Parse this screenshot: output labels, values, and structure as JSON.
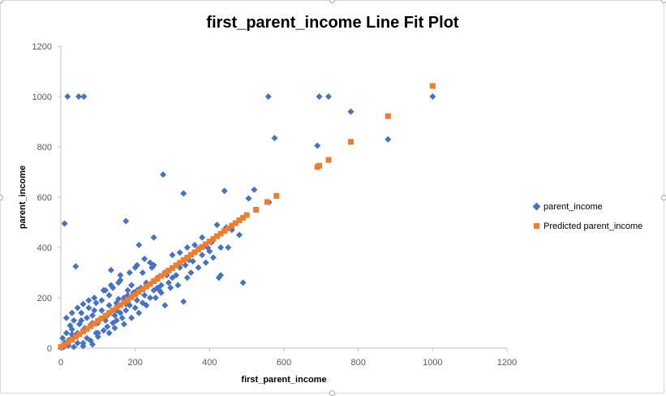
{
  "chart_data": {
    "type": "scatter",
    "title": "first_parent_income Line Fit  Plot",
    "xlabel": "first_parent_income",
    "ylabel": "parent_income",
    "xlim": [
      0,
      1200
    ],
    "ylim": [
      0,
      1200
    ],
    "x_ticks": [
      "0",
      "200",
      "400",
      "600",
      "800",
      "1000",
      "1200"
    ],
    "y_ticks": [
      "0",
      "200",
      "400",
      "600",
      "800",
      "1000",
      "1200"
    ],
    "grid": false,
    "legend_position": "right",
    "series": [
      {
        "name": "parent_income",
        "color": "#4472c4",
        "marker": "diamond",
        "points": [
          [
            18,
            1000
          ],
          [
            48,
            1000
          ],
          [
            62,
            1000
          ],
          [
            558,
            1000
          ],
          [
            695,
            1000
          ],
          [
            720,
            1000
          ],
          [
            1000,
            1000
          ],
          [
            780,
            940
          ],
          [
            575,
            835
          ],
          [
            690,
            805
          ],
          [
            880,
            830
          ],
          [
            275,
            690
          ],
          [
            330,
            615
          ],
          [
            440,
            625
          ],
          [
            520,
            630
          ],
          [
            505,
            595
          ],
          [
            560,
            580
          ],
          [
            10,
            495
          ],
          [
            175,
            505
          ],
          [
            445,
            480
          ],
          [
            460,
            470
          ],
          [
            480,
            450
          ],
          [
            420,
            490
          ],
          [
            380,
            440
          ],
          [
            40,
            325
          ],
          [
            250,
            440
          ],
          [
            210,
            410
          ],
          [
            430,
            400
          ],
          [
            450,
            400
          ],
          [
            360,
            410
          ],
          [
            340,
            400
          ],
          [
            320,
            380
          ],
          [
            300,
            370
          ],
          [
            490,
            260
          ],
          [
            430,
            290
          ],
          [
            425,
            280
          ],
          [
            330,
            185
          ],
          [
            280,
            170
          ],
          [
            260,
            240
          ],
          [
            220,
            300
          ],
          [
            200,
            320
          ],
          [
            160,
            290
          ],
          [
            135,
            310
          ],
          [
            240,
            340
          ],
          [
            245,
            320
          ],
          [
            190,
            250
          ],
          [
            180,
            230
          ],
          [
            170,
            200
          ],
          [
            150,
            180
          ],
          [
            165,
            120
          ],
          [
            145,
            130
          ],
          [
            120,
            110
          ],
          [
            100,
            100
          ],
          [
            80,
            90
          ],
          [
            60,
            70
          ],
          [
            40,
            50
          ],
          [
            20,
            30
          ],
          [
            10,
            20
          ],
          [
            5,
            40
          ],
          [
            15,
            60
          ],
          [
            25,
            90
          ],
          [
            35,
            110
          ],
          [
            55,
            140
          ],
          [
            75,
            160
          ],
          [
            95,
            180
          ],
          [
            110,
            190
          ],
          [
            130,
            210
          ],
          [
            140,
            240
          ],
          [
            155,
            260
          ],
          [
            120,
            230
          ],
          [
            90,
            150
          ],
          [
            70,
            120
          ],
          [
            50,
            95
          ],
          [
            30,
            55
          ],
          [
            20,
            10
          ],
          [
            45,
            20
          ],
          [
            70,
            40
          ],
          [
            95,
            60
          ],
          [
            115,
            70
          ],
          [
            140,
            100
          ],
          [
            160,
            140
          ],
          [
            185,
            170
          ],
          [
            205,
            190
          ],
          [
            225,
            210
          ],
          [
            250,
            230
          ],
          [
            270,
            250
          ],
          [
            290,
            260
          ],
          [
            310,
            290
          ],
          [
            335,
            330
          ],
          [
            355,
            345
          ],
          [
            380,
            370
          ],
          [
            400,
            385
          ],
          [
            410,
            360
          ],
          [
            390,
            340
          ],
          [
            370,
            320
          ],
          [
            350,
            300
          ],
          [
            300,
            280
          ],
          [
            280,
            300
          ],
          [
            260,
            280
          ],
          [
            230,
            260
          ],
          [
            215,
            240
          ],
          [
            195,
            220
          ],
          [
            175,
            175
          ],
          [
            150,
            150
          ],
          [
            125,
            130
          ],
          [
            105,
            115
          ],
          [
            85,
            100
          ],
          [
            65,
            80
          ],
          [
            45,
            60
          ],
          [
            25,
            35
          ],
          [
            12,
            15
          ],
          [
            8,
            5
          ],
          [
            3,
            2
          ],
          [
            30,
            75
          ],
          [
            55,
            110
          ],
          [
            85,
            130
          ],
          [
            110,
            150
          ],
          [
            130,
            170
          ],
          [
            155,
            195
          ],
          [
            180,
            210
          ],
          [
            205,
            230
          ],
          [
            235,
            250
          ],
          [
            255,
            270
          ],
          [
            285,
            290
          ],
          [
            320,
            320
          ],
          [
            345,
            350
          ],
          [
            370,
            395
          ],
          [
            395,
            400
          ],
          [
            405,
            420
          ],
          [
            100,
            60
          ],
          [
            125,
            85
          ],
          [
            150,
            110
          ],
          [
            175,
            150
          ],
          [
            200,
            160
          ],
          [
            220,
            180
          ],
          [
            240,
            200
          ],
          [
            265,
            230
          ],
          [
            60,
            20
          ],
          [
            80,
            30
          ],
          [
            100,
            45
          ],
          [
            35,
            5
          ],
          [
            60,
            8
          ],
          [
            85,
            15
          ],
          [
            130,
            60
          ],
          [
            145,
            80
          ],
          [
            170,
            95
          ],
          [
            190,
            120
          ],
          [
            210,
            140
          ],
          [
            230,
            170
          ],
          [
            255,
            200
          ],
          [
            270,
            220
          ],
          [
            295,
            240
          ],
          [
            315,
            250
          ],
          [
            340,
            280
          ],
          [
            75,
            190
          ],
          [
            90,
            200
          ],
          [
            115,
            230
          ],
          [
            135,
            250
          ],
          [
            160,
            270
          ],
          [
            185,
            300
          ],
          [
            205,
            330
          ],
          [
            225,
            355
          ],
          [
            250,
            330
          ],
          [
            60,
            175
          ],
          [
            45,
            160
          ],
          [
            30,
            140
          ],
          [
            15,
            120
          ]
        ]
      },
      {
        "name": "Predicted parent_income",
        "color": "#ed7d31",
        "marker": "square",
        "points": [
          [
            0,
            5
          ],
          [
            10,
            13
          ],
          [
            20,
            24
          ],
          [
            30,
            34
          ],
          [
            40,
            45
          ],
          [
            50,
            55
          ],
          [
            60,
            66
          ],
          [
            70,
            76
          ],
          [
            80,
            87
          ],
          [
            90,
            97
          ],
          [
            100,
            108
          ],
          [
            110,
            118
          ],
          [
            120,
            129
          ],
          [
            130,
            140
          ],
          [
            140,
            150
          ],
          [
            150,
            161
          ],
          [
            160,
            171
          ],
          [
            170,
            182
          ],
          [
            180,
            192
          ],
          [
            190,
            203
          ],
          [
            200,
            213
          ],
          [
            210,
            224
          ],
          [
            220,
            234
          ],
          [
            230,
            245
          ],
          [
            240,
            255
          ],
          [
            250,
            266
          ],
          [
            260,
            276
          ],
          [
            270,
            287
          ],
          [
            280,
            297
          ],
          [
            290,
            308
          ],
          [
            300,
            318
          ],
          [
            310,
            329
          ],
          [
            320,
            339
          ],
          [
            330,
            350
          ],
          [
            340,
            360
          ],
          [
            350,
            371
          ],
          [
            360,
            381
          ],
          [
            370,
            392
          ],
          [
            380,
            402
          ],
          [
            390,
            413
          ],
          [
            400,
            424
          ],
          [
            410,
            434
          ],
          [
            420,
            445
          ],
          [
            430,
            455
          ],
          [
            440,
            466
          ],
          [
            450,
            476
          ],
          [
            460,
            487
          ],
          [
            470,
            497
          ],
          [
            480,
            508
          ],
          [
            490,
            518
          ],
          [
            500,
            529
          ],
          [
            525,
            550
          ],
          [
            555,
            581
          ],
          [
            580,
            605
          ],
          [
            690,
            720
          ],
          [
            695,
            725
          ],
          [
            720,
            748
          ],
          [
            780,
            820
          ],
          [
            880,
            922
          ],
          [
            1000,
            1042
          ]
        ]
      }
    ]
  }
}
